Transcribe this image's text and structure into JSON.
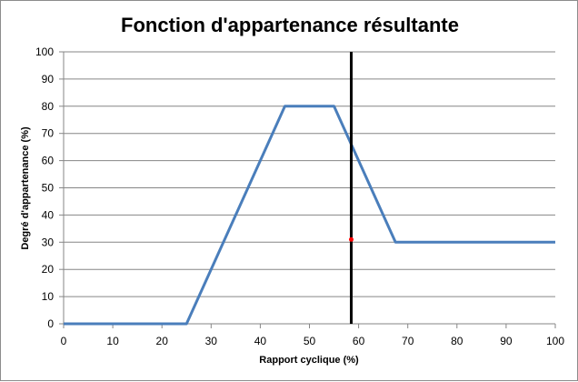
{
  "chart_data": {
    "type": "line",
    "title": "Fonction d'appartenance résultante",
    "xlabel": "Rapport cyclique  (%)",
    "ylabel": "Degré d'appartenance  (%)",
    "xlim": [
      0,
      100
    ],
    "ylim": [
      0,
      100
    ],
    "xticks": [
      0,
      10,
      20,
      30,
      40,
      50,
      60,
      70,
      80,
      90,
      100
    ],
    "yticks": [
      0,
      10,
      20,
      30,
      40,
      50,
      60,
      70,
      80,
      90,
      100
    ],
    "grid": "horizontal",
    "series": [
      {
        "color": "#4a7ebb",
        "points": [
          [
            0,
            0
          ],
          [
            25,
            0
          ],
          [
            45,
            80
          ],
          [
            55,
            80
          ],
          [
            67.5,
            30
          ],
          [
            100,
            30
          ]
        ]
      }
    ],
    "vertical_line": {
      "x": 58.5,
      "color": "#000000"
    },
    "marker": {
      "x": 58.5,
      "y": 31,
      "color": "#ff0000"
    }
  }
}
